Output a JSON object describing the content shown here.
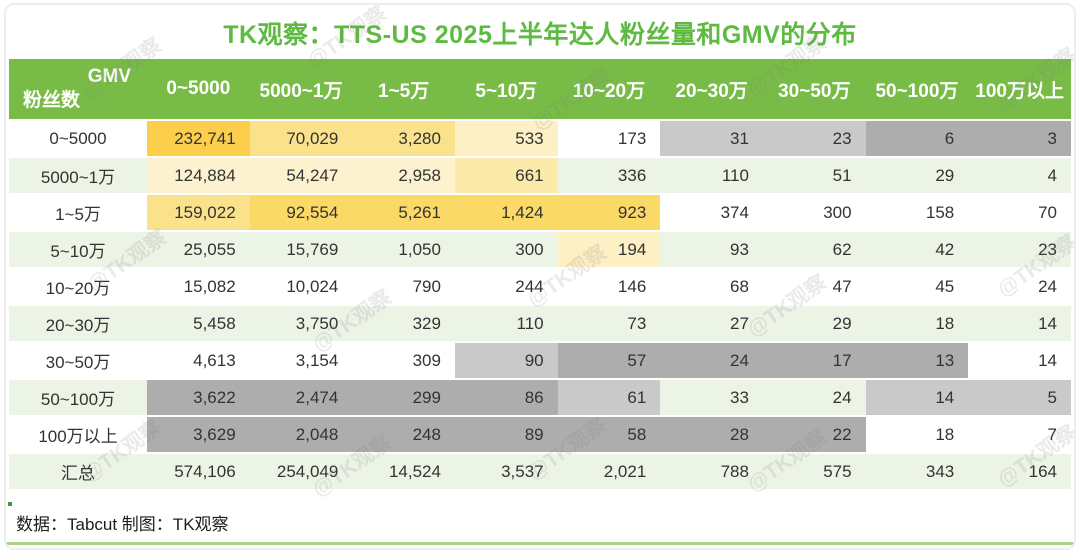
{
  "title": "TK观察：TTS-US 2025上半年达人粉丝量和GMV的分布",
  "footer": "数据：Tabcut 制图：TK观察",
  "watermark": "@TK观察",
  "colors": {
    "title_green": "#5eba41",
    "header_green": "#78bc47",
    "row_band_green": "#ecf4e6",
    "gold_dark": "#fbcf4b",
    "gold_mid": "#fbd966",
    "gold_light": "#fae28c",
    "yellow_pale": "#fdf2cf",
    "yellow_soft": "#fdf0c4",
    "yellow_deep_pale": "#fceaab",
    "gray_light": "#c9c9c9",
    "gray_dark": "#adadad",
    "bottom_line": "#a9d18e"
  },
  "table": {
    "corner": {
      "top": "GMV",
      "bottom": "粉丝数"
    },
    "columns": [
      "0~5000",
      "5000~1万",
      "1~5万",
      "5~10万",
      "10~20万",
      "20~30万",
      "30~50万",
      "50~100万",
      "100万以上"
    ],
    "rows": [
      {
        "label": "0~5000",
        "values": [
          "232,741",
          "70,029",
          "3,280",
          "533",
          "173",
          "31",
          "23",
          "6",
          "3"
        ],
        "fills": [
          "gold1",
          "gold3",
          "gold3",
          "yellow1",
          "",
          "grayL",
          "grayL",
          "grayD",
          "grayD"
        ]
      },
      {
        "label": "5000~1万",
        "values": [
          "124,884",
          "54,247",
          "2,958",
          "661",
          "336",
          "110",
          "51",
          "29",
          "4"
        ],
        "fills": [
          "yellow0",
          "yellow0",
          "yellow0",
          "yellow2",
          "",
          "",
          "",
          "",
          ""
        ]
      },
      {
        "label": "1~5万",
        "values": [
          "159,022",
          "92,554",
          "5,261",
          "1,424",
          "923",
          "374",
          "300",
          "158",
          "70"
        ],
        "fills": [
          "gold3",
          "gold2",
          "gold2",
          "gold2",
          "gold2",
          "",
          "",
          "",
          ""
        ]
      },
      {
        "label": "5~10万",
        "values": [
          "25,055",
          "15,769",
          "1,050",
          "300",
          "194",
          "93",
          "62",
          "42",
          "23"
        ],
        "fills": [
          "",
          "",
          "",
          "",
          "yellow1",
          "",
          "",
          "",
          ""
        ]
      },
      {
        "label": "10~20万",
        "values": [
          "15,082",
          "10,024",
          "790",
          "244",
          "146",
          "68",
          "47",
          "45",
          "24"
        ],
        "fills": [
          "",
          "",
          "",
          "",
          "",
          "",
          "",
          "",
          ""
        ]
      },
      {
        "label": "20~30万",
        "values": [
          "5,458",
          "3,750",
          "329",
          "110",
          "73",
          "27",
          "29",
          "18",
          "14"
        ],
        "fills": [
          "",
          "",
          "",
          "",
          "",
          "",
          "",
          "",
          ""
        ]
      },
      {
        "label": "30~50万",
        "values": [
          "4,613",
          "3,154",
          "309",
          "90",
          "57",
          "24",
          "17",
          "13",
          "14"
        ],
        "fills": [
          "",
          "",
          "",
          "grayL",
          "grayD",
          "grayD",
          "grayD",
          "grayD",
          ""
        ]
      },
      {
        "label": "50~100万",
        "values": [
          "3,622",
          "2,474",
          "299",
          "86",
          "61",
          "33",
          "24",
          "14",
          "5"
        ],
        "fills": [
          "grayD",
          "grayD",
          "grayD",
          "grayD",
          "grayL",
          "",
          "",
          "grayL",
          "grayL"
        ]
      },
      {
        "label": "100万以上",
        "values": [
          "3,629",
          "2,048",
          "248",
          "89",
          "58",
          "28",
          "22",
          "18",
          "7"
        ],
        "fills": [
          "grayD",
          "grayD",
          "grayD",
          "grayD",
          "grayD",
          "grayD",
          "grayD",
          "",
          ""
        ]
      },
      {
        "label": "汇总",
        "values": [
          "574,106",
          "254,049",
          "14,524",
          "3,537",
          "2,021",
          "788",
          "575",
          "343",
          "164"
        ],
        "fills": [
          "",
          "",
          "",
          "",
          "",
          "",
          "",
          "",
          ""
        ]
      }
    ]
  },
  "chart_data": {
    "type": "table",
    "title": "TK观察：TTS-US 2025上半年达人粉丝量和GMV的分布",
    "row_dimension": "粉丝数",
    "column_dimension": "GMV",
    "columns": [
      "0~5000",
      "5000~1万",
      "1~5万",
      "5~10万",
      "10~20万",
      "20~30万",
      "30~50万",
      "50~100万",
      "100万以上"
    ],
    "rows": [
      "0~5000",
      "5000~1万",
      "1~5万",
      "5~10万",
      "10~20万",
      "20~30万",
      "30~50万",
      "50~100万",
      "100万以上",
      "汇总"
    ],
    "values": [
      [
        232741,
        70029,
        3280,
        533,
        173,
        31,
        23,
        6,
        3
      ],
      [
        124884,
        54247,
        2958,
        661,
        336,
        110,
        51,
        29,
        4
      ],
      [
        159022,
        92554,
        5261,
        1424,
        923,
        374,
        300,
        158,
        70
      ],
      [
        25055,
        15769,
        1050,
        300,
        194,
        93,
        62,
        42,
        23
      ],
      [
        15082,
        10024,
        790,
        244,
        146,
        68,
        47,
        45,
        24
      ],
      [
        5458,
        3750,
        329,
        110,
        73,
        27,
        29,
        18,
        14
      ],
      [
        4613,
        3154,
        309,
        90,
        57,
        24,
        17,
        13,
        14
      ],
      [
        3622,
        2474,
        299,
        86,
        61,
        33,
        24,
        14,
        5
      ],
      [
        3629,
        2048,
        248,
        89,
        58,
        28,
        22,
        18,
        7
      ],
      [
        574106,
        254049,
        14524,
        3537,
        2021,
        788,
        575,
        343,
        164
      ]
    ],
    "source_note": "数据：Tabcut 制图：TK观察"
  }
}
